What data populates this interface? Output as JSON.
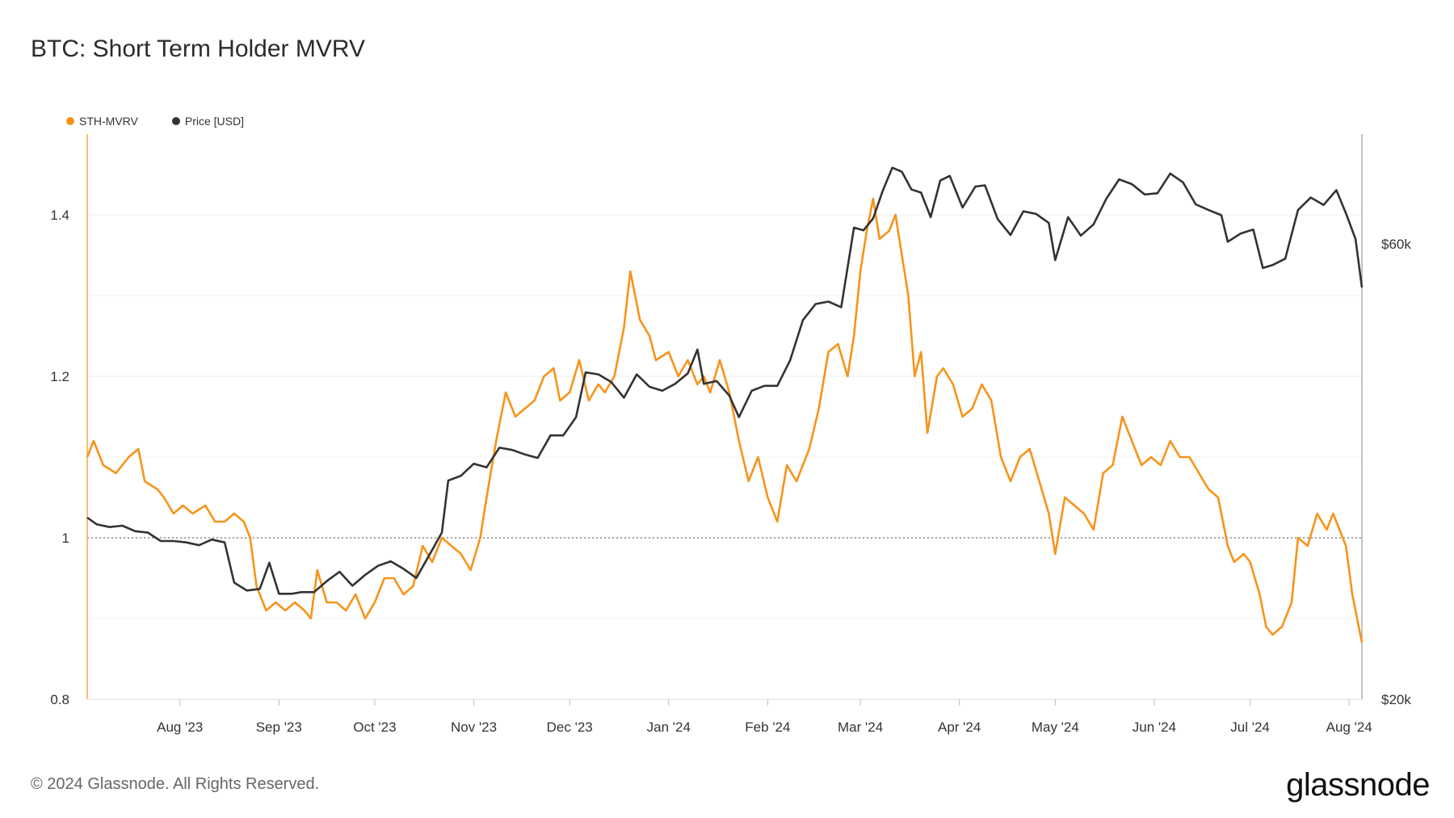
{
  "title": "BTC: Short Term Holder MVRV",
  "footer": {
    "copyright": "© 2024 Glassnode. All Rights Reserved.",
    "logo": "glassnode"
  },
  "colors": {
    "sth_mvrv": "#f7931a",
    "price": "#333333",
    "grid": "#ececec",
    "reference": "#777777"
  },
  "chart_data": {
    "type": "line",
    "title": "BTC: Short Term Holder MVRV",
    "legend_position": "top-left",
    "grid": true,
    "x_ticks": [
      "Aug '23",
      "Sep '23",
      "Oct '23",
      "Nov '23",
      "Dec '23",
      "Jan '24",
      "Feb '24",
      "Mar '24",
      "Apr '24",
      "May '24",
      "Jun '24",
      "Jul '24",
      "Aug '24"
    ],
    "x_range": [
      "2023-07-03",
      "2024-08-05"
    ],
    "y_left": {
      "label": "",
      "ticks": [
        "1.4",
        "1.2",
        "1",
        "0.8"
      ],
      "range": [
        0.8,
        1.5
      ],
      "reference_line": 1
    },
    "y_right": {
      "label": "",
      "ticks": [
        "$60k",
        "$20k"
      ],
      "scale": "log"
    },
    "series": [
      {
        "name": "STH-MVRV",
        "axis": "left",
        "points": [
          [
            "2023-07-03",
            1.1
          ],
          [
            "2023-07-05",
            1.12
          ],
          [
            "2023-07-08",
            1.09
          ],
          [
            "2023-07-12",
            1.08
          ],
          [
            "2023-07-16",
            1.1
          ],
          [
            "2023-07-19",
            1.11
          ],
          [
            "2023-07-21",
            1.07
          ],
          [
            "2023-07-25",
            1.06
          ],
          [
            "2023-07-27",
            1.05
          ],
          [
            "2023-07-30",
            1.03
          ],
          [
            "2023-08-02",
            1.04
          ],
          [
            "2023-08-05",
            1.03
          ],
          [
            "2023-08-09",
            1.04
          ],
          [
            "2023-08-12",
            1.02
          ],
          [
            "2023-08-15",
            1.02
          ],
          [
            "2023-08-18",
            1.03
          ],
          [
            "2023-08-21",
            1.02
          ],
          [
            "2023-08-23",
            1.0
          ],
          [
            "2023-08-25",
            0.94
          ],
          [
            "2023-08-28",
            0.91
          ],
          [
            "2023-08-31",
            0.92
          ],
          [
            "2023-09-03",
            0.91
          ],
          [
            "2023-09-06",
            0.92
          ],
          [
            "2023-09-09",
            0.91
          ],
          [
            "2023-09-11",
            0.9
          ],
          [
            "2023-09-13",
            0.96
          ],
          [
            "2023-09-16",
            0.92
          ],
          [
            "2023-09-19",
            0.92
          ],
          [
            "2023-09-22",
            0.91
          ],
          [
            "2023-09-25",
            0.93
          ],
          [
            "2023-09-28",
            0.9
          ],
          [
            "2023-10-01",
            0.92
          ],
          [
            "2023-10-04",
            0.95
          ],
          [
            "2023-10-07",
            0.95
          ],
          [
            "2023-10-10",
            0.93
          ],
          [
            "2023-10-13",
            0.94
          ],
          [
            "2023-10-16",
            0.99
          ],
          [
            "2023-10-19",
            0.97
          ],
          [
            "2023-10-22",
            1.0
          ],
          [
            "2023-10-25",
            0.99
          ],
          [
            "2023-10-28",
            0.98
          ],
          [
            "2023-10-31",
            0.96
          ],
          [
            "2023-11-03",
            1.0
          ],
          [
            "2023-11-05",
            1.05
          ],
          [
            "2023-11-08",
            1.12
          ],
          [
            "2023-11-11",
            1.18
          ],
          [
            "2023-11-14",
            1.15
          ],
          [
            "2023-11-17",
            1.16
          ],
          [
            "2023-11-20",
            1.17
          ],
          [
            "2023-11-23",
            1.2
          ],
          [
            "2023-11-26",
            1.21
          ],
          [
            "2023-11-28",
            1.17
          ],
          [
            "2023-12-01",
            1.18
          ],
          [
            "2023-12-04",
            1.22
          ],
          [
            "2023-12-07",
            1.17
          ],
          [
            "2023-12-10",
            1.19
          ],
          [
            "2023-12-12",
            1.18
          ],
          [
            "2023-12-15",
            1.2
          ],
          [
            "2023-12-18",
            1.26
          ],
          [
            "2023-12-20",
            1.33
          ],
          [
            "2023-12-23",
            1.27
          ],
          [
            "2023-12-26",
            1.25
          ],
          [
            "2023-12-28",
            1.22
          ],
          [
            "2024-01-01",
            1.23
          ],
          [
            "2024-01-04",
            1.2
          ],
          [
            "2024-01-07",
            1.22
          ],
          [
            "2024-01-10",
            1.19
          ],
          [
            "2024-01-12",
            1.2
          ],
          [
            "2024-01-14",
            1.18
          ],
          [
            "2024-01-17",
            1.22
          ],
          [
            "2024-01-20",
            1.18
          ],
          [
            "2024-01-23",
            1.12
          ],
          [
            "2024-01-26",
            1.07
          ],
          [
            "2024-01-29",
            1.1
          ],
          [
            "2024-02-01",
            1.05
          ],
          [
            "2024-02-04",
            1.02
          ],
          [
            "2024-02-07",
            1.09
          ],
          [
            "2024-02-10",
            1.07
          ],
          [
            "2024-02-14",
            1.11
          ],
          [
            "2024-02-17",
            1.16
          ],
          [
            "2024-02-20",
            1.23
          ],
          [
            "2024-02-23",
            1.24
          ],
          [
            "2024-02-26",
            1.2
          ],
          [
            "2024-02-28",
            1.25
          ],
          [
            "2024-03-01",
            1.33
          ],
          [
            "2024-03-03",
            1.38
          ],
          [
            "2024-03-05",
            1.42
          ],
          [
            "2024-03-07",
            1.37
          ],
          [
            "2024-03-10",
            1.38
          ],
          [
            "2024-03-12",
            1.4
          ],
          [
            "2024-03-14",
            1.35
          ],
          [
            "2024-03-16",
            1.3
          ],
          [
            "2024-03-18",
            1.2
          ],
          [
            "2024-03-20",
            1.23
          ],
          [
            "2024-03-22",
            1.13
          ],
          [
            "2024-03-25",
            1.2
          ],
          [
            "2024-03-27",
            1.21
          ],
          [
            "2024-03-30",
            1.19
          ],
          [
            "2024-04-02",
            1.15
          ],
          [
            "2024-04-05",
            1.16
          ],
          [
            "2024-04-08",
            1.19
          ],
          [
            "2024-04-11",
            1.17
          ],
          [
            "2024-04-14",
            1.1
          ],
          [
            "2024-04-17",
            1.07
          ],
          [
            "2024-04-20",
            1.1
          ],
          [
            "2024-04-23",
            1.11
          ],
          [
            "2024-04-26",
            1.07
          ],
          [
            "2024-04-29",
            1.03
          ],
          [
            "2024-05-01",
            0.98
          ],
          [
            "2024-05-04",
            1.05
          ],
          [
            "2024-05-07",
            1.04
          ],
          [
            "2024-05-10",
            1.03
          ],
          [
            "2024-05-13",
            1.01
          ],
          [
            "2024-05-16",
            1.08
          ],
          [
            "2024-05-19",
            1.09
          ],
          [
            "2024-05-22",
            1.15
          ],
          [
            "2024-05-25",
            1.12
          ],
          [
            "2024-05-28",
            1.09
          ],
          [
            "2024-05-31",
            1.1
          ],
          [
            "2024-06-03",
            1.09
          ],
          [
            "2024-06-06",
            1.12
          ],
          [
            "2024-06-09",
            1.1
          ],
          [
            "2024-06-12",
            1.1
          ],
          [
            "2024-06-15",
            1.08
          ],
          [
            "2024-06-18",
            1.06
          ],
          [
            "2024-06-21",
            1.05
          ],
          [
            "2024-06-24",
            0.99
          ],
          [
            "2024-06-26",
            0.97
          ],
          [
            "2024-06-29",
            0.98
          ],
          [
            "2024-07-01",
            0.97
          ],
          [
            "2024-07-04",
            0.93
          ],
          [
            "2024-07-06",
            0.89
          ],
          [
            "2024-07-08",
            0.88
          ],
          [
            "2024-07-11",
            0.89
          ],
          [
            "2024-07-14",
            0.92
          ],
          [
            "2024-07-16",
            1.0
          ],
          [
            "2024-07-19",
            0.99
          ],
          [
            "2024-07-22",
            1.03
          ],
          [
            "2024-07-25",
            1.01
          ],
          [
            "2024-07-27",
            1.03
          ],
          [
            "2024-07-29",
            1.01
          ],
          [
            "2024-07-31",
            0.99
          ],
          [
            "2024-08-02",
            0.93
          ],
          [
            "2024-08-05",
            0.87
          ]
        ]
      },
      {
        "name": "Price [USD]",
        "axis": "right",
        "points": [
          [
            "2023-07-03",
            31000
          ],
          [
            "2023-07-06",
            30500
          ],
          [
            "2023-07-10",
            30300
          ],
          [
            "2023-07-14",
            30400
          ],
          [
            "2023-07-18",
            30000
          ],
          [
            "2023-07-22",
            29900
          ],
          [
            "2023-07-26",
            29300
          ],
          [
            "2023-07-30",
            29300
          ],
          [
            "2023-08-03",
            29200
          ],
          [
            "2023-08-07",
            29000
          ],
          [
            "2023-08-11",
            29400
          ],
          [
            "2023-08-15",
            29200
          ],
          [
            "2023-08-18",
            26500
          ],
          [
            "2023-08-22",
            26000
          ],
          [
            "2023-08-26",
            26100
          ],
          [
            "2023-08-29",
            27800
          ],
          [
            "2023-09-01",
            25800
          ],
          [
            "2023-09-05",
            25800
          ],
          [
            "2023-09-08",
            25900
          ],
          [
            "2023-09-12",
            25900
          ],
          [
            "2023-09-16",
            26600
          ],
          [
            "2023-09-20",
            27200
          ],
          [
            "2023-09-24",
            26300
          ],
          [
            "2023-09-28",
            27000
          ],
          [
            "2023-10-02",
            27600
          ],
          [
            "2023-10-06",
            27900
          ],
          [
            "2023-10-10",
            27400
          ],
          [
            "2023-10-14",
            26800
          ],
          [
            "2023-10-18",
            28300
          ],
          [
            "2023-10-22",
            29900
          ],
          [
            "2023-10-24",
            33900
          ],
          [
            "2023-10-28",
            34300
          ],
          [
            "2023-11-01",
            35300
          ],
          [
            "2023-11-05",
            35000
          ],
          [
            "2023-11-09",
            36700
          ],
          [
            "2023-11-13",
            36500
          ],
          [
            "2023-11-17",
            36100
          ],
          [
            "2023-11-21",
            35800
          ],
          [
            "2023-11-25",
            37800
          ],
          [
            "2023-11-29",
            37800
          ],
          [
            "2023-12-03",
            39500
          ],
          [
            "2023-12-06",
            44000
          ],
          [
            "2023-12-10",
            43800
          ],
          [
            "2023-12-14",
            43000
          ],
          [
            "2023-12-18",
            41400
          ],
          [
            "2023-12-22",
            43800
          ],
          [
            "2023-12-26",
            42500
          ],
          [
            "2023-12-30",
            42100
          ],
          [
            "2024-01-03",
            42800
          ],
          [
            "2024-01-07",
            43900
          ],
          [
            "2024-01-10",
            46500
          ],
          [
            "2024-01-12",
            42800
          ],
          [
            "2024-01-16",
            43100
          ],
          [
            "2024-01-20",
            41600
          ],
          [
            "2024-01-23",
            39500
          ],
          [
            "2024-01-27",
            42100
          ],
          [
            "2024-01-31",
            42600
          ],
          [
            "2024-02-04",
            42600
          ],
          [
            "2024-02-08",
            45300
          ],
          [
            "2024-02-12",
            49900
          ],
          [
            "2024-02-16",
            51900
          ],
          [
            "2024-02-20",
            52200
          ],
          [
            "2024-02-24",
            51500
          ],
          [
            "2024-02-28",
            62400
          ],
          [
            "2024-03-02",
            62000
          ],
          [
            "2024-03-05",
            63800
          ],
          [
            "2024-03-08",
            68200
          ],
          [
            "2024-03-11",
            72100
          ],
          [
            "2024-03-14",
            71400
          ],
          [
            "2024-03-17",
            68400
          ],
          [
            "2024-03-20",
            67900
          ],
          [
            "2024-03-23",
            64000
          ],
          [
            "2024-03-26",
            69900
          ],
          [
            "2024-03-29",
            70700
          ],
          [
            "2024-04-02",
            65500
          ],
          [
            "2024-04-06",
            68900
          ],
          [
            "2024-04-09",
            69100
          ],
          [
            "2024-04-13",
            63700
          ],
          [
            "2024-04-17",
            61300
          ],
          [
            "2024-04-21",
            64900
          ],
          [
            "2024-04-25",
            64500
          ],
          [
            "2024-04-29",
            63100
          ],
          [
            "2024-05-01",
            57700
          ],
          [
            "2024-05-05",
            64000
          ],
          [
            "2024-05-09",
            61200
          ],
          [
            "2024-05-13",
            62900
          ],
          [
            "2024-05-17",
            66900
          ],
          [
            "2024-05-21",
            70100
          ],
          [
            "2024-05-25",
            69300
          ],
          [
            "2024-05-29",
            67600
          ],
          [
            "2024-06-02",
            67800
          ],
          [
            "2024-06-06",
            71100
          ],
          [
            "2024-06-10",
            69600
          ],
          [
            "2024-06-14",
            66000
          ],
          [
            "2024-06-18",
            65100
          ],
          [
            "2024-06-22",
            64300
          ],
          [
            "2024-06-24",
            60300
          ],
          [
            "2024-06-28",
            61500
          ],
          [
            "2024-07-02",
            62100
          ],
          [
            "2024-07-05",
            56600
          ],
          [
            "2024-07-08",
            57000
          ],
          [
            "2024-07-12",
            57900
          ],
          [
            "2024-07-16",
            65100
          ],
          [
            "2024-07-20",
            67100
          ],
          [
            "2024-07-24",
            65900
          ],
          [
            "2024-07-28",
            68300
          ],
          [
            "2024-07-31",
            64600
          ],
          [
            "2024-08-03",
            60700
          ],
          [
            "2024-08-05",
            54000
          ]
        ]
      }
    ]
  }
}
